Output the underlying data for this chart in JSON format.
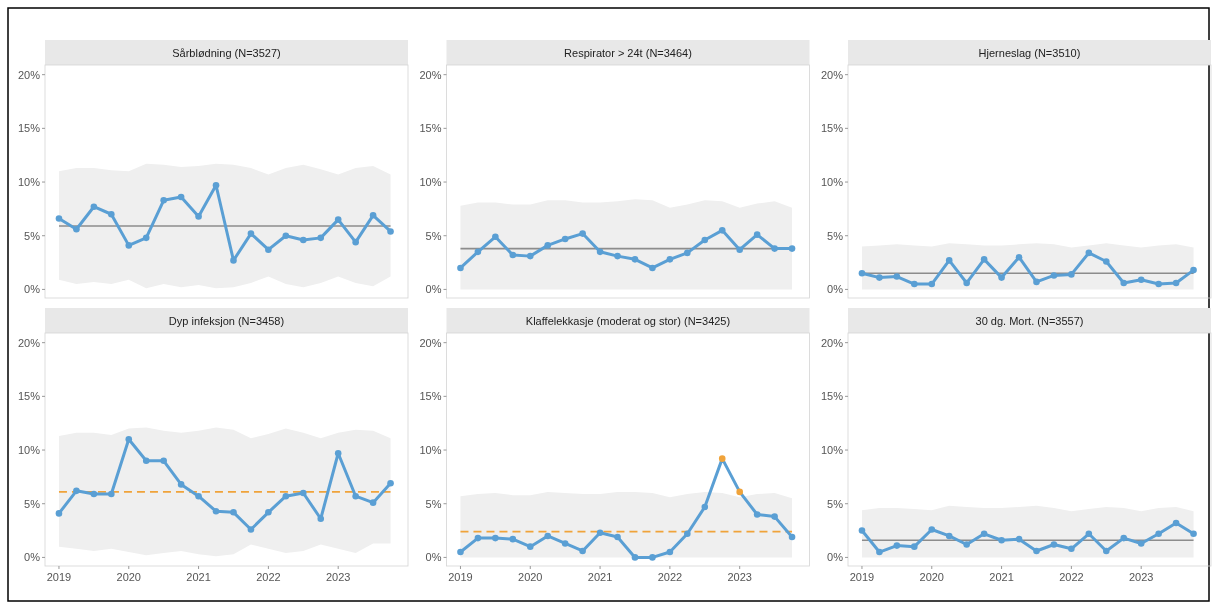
{
  "chart_data": [
    {
      "type": "line",
      "title": "Sårblødning (N=3527)",
      "x": [
        2019,
        2019.25,
        2019.5,
        2019.75,
        2020,
        2020.25,
        2020.5,
        2020.75,
        2021,
        2021.25,
        2021.5,
        2021.75,
        2022,
        2022.25,
        2022.5,
        2022.75,
        2023,
        2023.25,
        2023.5,
        2023.75
      ],
      "xlim": [
        2018.8,
        2024
      ],
      "ylim": [
        -0.8,
        20.9
      ],
      "yticks": [
        {
          "value": 0,
          "label": "0%"
        },
        {
          "value": 5,
          "label": "5%"
        },
        {
          "value": 10,
          "label": "10%"
        },
        {
          "value": 15,
          "label": "15%"
        },
        {
          "value": 20,
          "label": "20%"
        }
      ],
      "tick_labels": "y",
      "marker": "circle",
      "grid": false,
      "series": [
        {
          "color": "#5a9fd4",
          "values": [
            6.6,
            5.6,
            7.7,
            7.0,
            4.1,
            4.8,
            8.3,
            8.6,
            6.8,
            9.7,
            2.7,
            5.2,
            3.7,
            5.0,
            4.6,
            4.8,
            6.5,
            4.4,
            6.9,
            5.4
          ],
          "lower": [
            0.9,
            0.5,
            0.7,
            0.5,
            0.9,
            0.1,
            0.5,
            0.2,
            0.4,
            0.1,
            0.2,
            0.6,
            1.2,
            0.5,
            0.2,
            0.6,
            1.2,
            0.6,
            0.3,
            1.2
          ],
          "upper": [
            11.0,
            11.3,
            11.3,
            11.1,
            11.0,
            11.7,
            11.6,
            11.4,
            11.5,
            11.7,
            11.6,
            11.3,
            10.7,
            11.3,
            11.6,
            11.2,
            10.7,
            11.3,
            11.5,
            10.7
          ]
        }
      ],
      "ref_lines": [
        {
          "axis": "y",
          "value": 5.9,
          "color": "#8c8c8c",
          "line_style": "solid"
        }
      ]
    },
    {
      "type": "line",
      "title": "Respirator > 24t (N=3464)",
      "x": [
        2019,
        2019.25,
        2019.5,
        2019.75,
        2020,
        2020.25,
        2020.5,
        2020.75,
        2021,
        2021.25,
        2021.5,
        2021.75,
        2022,
        2022.25,
        2022.5,
        2022.75,
        2023,
        2023.25,
        2023.5,
        2023.75
      ],
      "xlim": [
        2018.8,
        2024
      ],
      "ylim": [
        -0.8,
        20.9
      ],
      "yticks": [
        {
          "value": 0,
          "label": "0%"
        },
        {
          "value": 5,
          "label": "5%"
        },
        {
          "value": 10,
          "label": "10%"
        },
        {
          "value": 15,
          "label": "15%"
        },
        {
          "value": 20,
          "label": "20%"
        }
      ],
      "tick_labels": "y",
      "marker": "circle",
      "grid": false,
      "series": [
        {
          "color": "#5a9fd4",
          "values": [
            2.0,
            3.5,
            4.9,
            3.2,
            3.1,
            4.1,
            4.7,
            5.2,
            3.5,
            3.1,
            2.8,
            2.0,
            2.8,
            3.4,
            4.6,
            5.5,
            3.7,
            5.1,
            3.8,
            3.8
          ],
          "lower": [
            0,
            0,
            0,
            0,
            0,
            0,
            0,
            0,
            0,
            0,
            0,
            0,
            0,
            0,
            0,
            0,
            0,
            0,
            0,
            0
          ],
          "upper": [
            7.8,
            8.1,
            8.1,
            7.9,
            7.9,
            8.3,
            8.3,
            8.1,
            8.1,
            8.2,
            8.4,
            8.3,
            7.6,
            7.9,
            8.3,
            8.2,
            7.6,
            8.0,
            8.2,
            7.6
          ]
        }
      ],
      "ref_lines": [
        {
          "axis": "y",
          "value": 3.8,
          "color": "#8c8c8c",
          "line_style": "solid"
        }
      ]
    },
    {
      "type": "line",
      "title": "Hjerneslag (N=3510)",
      "x": [
        2019,
        2019.25,
        2019.5,
        2019.75,
        2020,
        2020.25,
        2020.5,
        2020.75,
        2021,
        2021.25,
        2021.5,
        2021.75,
        2022,
        2022.25,
        2022.5,
        2022.75,
        2023,
        2023.25,
        2023.5,
        2023.75
      ],
      "xlim": [
        2018.8,
        2024
      ],
      "ylim": [
        -0.8,
        20.9
      ],
      "yticks": [
        {
          "value": 0,
          "label": "0%"
        },
        {
          "value": 5,
          "label": "5%"
        },
        {
          "value": 10,
          "label": "10%"
        },
        {
          "value": 15,
          "label": "15%"
        },
        {
          "value": 20,
          "label": "20%"
        }
      ],
      "tick_labels": "y",
      "marker": "circle",
      "grid": false,
      "series": [
        {
          "color": "#5a9fd4",
          "values": [
            1.5,
            1.1,
            1.2,
            0.5,
            0.5,
            2.7,
            0.6,
            2.8,
            1.1,
            3.0,
            0.7,
            1.3,
            1.4,
            3.4,
            2.6,
            0.6,
            0.9,
            0.5,
            0.6,
            1.8
          ],
          "lower": [
            0,
            0,
            0,
            0,
            0,
            0,
            0,
            0,
            0,
            0,
            0,
            0,
            0,
            0,
            0,
            0,
            0,
            0,
            0,
            0
          ],
          "upper": [
            4.0,
            4.1,
            4.2,
            4.1,
            4.0,
            4.3,
            4.2,
            4.1,
            4.1,
            4.2,
            4.3,
            4.2,
            3.9,
            4.1,
            4.3,
            4.1,
            3.9,
            4.1,
            4.2,
            3.9
          ]
        }
      ],
      "ref_lines": [
        {
          "axis": "y",
          "value": 1.5,
          "color": "#8c8c8c",
          "line_style": "solid"
        }
      ]
    },
    {
      "type": "line",
      "title": "Dyp infeksjon (N=3458)",
      "x": [
        2019,
        2019.25,
        2019.5,
        2019.75,
        2020,
        2020.25,
        2020.5,
        2020.75,
        2021,
        2021.25,
        2021.5,
        2021.75,
        2022,
        2022.25,
        2022.5,
        2022.75,
        2023,
        2023.25,
        2023.5,
        2023.75
      ],
      "xlim": [
        2018.8,
        2024
      ],
      "xticks": [
        2019,
        2020,
        2021,
        2022,
        2023
      ],
      "ylim": [
        -0.8,
        20.9
      ],
      "yticks": [
        {
          "value": 0,
          "label": "0%"
        },
        {
          "value": 5,
          "label": "5%"
        },
        {
          "value": 10,
          "label": "10%"
        },
        {
          "value": 15,
          "label": "15%"
        },
        {
          "value": 20,
          "label": "20%"
        }
      ],
      "marker": "circle",
      "grid": false,
      "series": [
        {
          "color": "#5a9fd4",
          "values": [
            4.1,
            6.2,
            5.9,
            5.9,
            11.0,
            9.0,
            9.0,
            6.8,
            5.7,
            4.3,
            4.2,
            2.6,
            4.2,
            5.7,
            6.0,
            3.6,
            9.7,
            5.7,
            5.1,
            6.9
          ],
          "lower": [
            1.0,
            0.8,
            0.6,
            0.8,
            0.5,
            0.2,
            0.4,
            0.6,
            0.3,
            0.1,
            0.3,
            1.2,
            0.8,
            0.4,
            0.6,
            1.2,
            0.8,
            0.4,
            1.3,
            1.3
          ],
          "upper": [
            11.3,
            11.6,
            11.6,
            11.4,
            12.0,
            12.1,
            11.8,
            11.6,
            11.8,
            12.1,
            11.9,
            11.1,
            11.5,
            12.0,
            11.6,
            11.1,
            11.6,
            11.9,
            11.8,
            11.1
          ]
        }
      ],
      "ref_lines": [
        {
          "axis": "y",
          "value": 6.1,
          "color": "#f0a33a",
          "line_style": "dashed"
        }
      ]
    },
    {
      "type": "line",
      "title": "Klaffelekkasje (moderat og stor) (N=3425)",
      "x": [
        2019,
        2019.25,
        2019.5,
        2019.75,
        2020,
        2020.25,
        2020.5,
        2020.75,
        2021,
        2021.25,
        2021.5,
        2021.75,
        2022,
        2022.25,
        2022.5,
        2022.75,
        2023,
        2023.25,
        2023.5,
        2023.75
      ],
      "xlim": [
        2018.8,
        2024
      ],
      "xticks": [
        2019,
        2020,
        2021,
        2022,
        2023
      ],
      "ylim": [
        -0.8,
        20.9
      ],
      "yticks": [
        {
          "value": 0,
          "label": "0%"
        },
        {
          "value": 5,
          "label": "5%"
        },
        {
          "value": 10,
          "label": "10%"
        },
        {
          "value": 15,
          "label": "15%"
        },
        {
          "value": 20,
          "label": "20%"
        }
      ],
      "marker": "circle",
      "grid": false,
      "series": [
        {
          "color": "#5a9fd4",
          "colors": [
            "#5a9fd4",
            "#5a9fd4",
            "#5a9fd4",
            "#5a9fd4",
            "#5a9fd4",
            "#5a9fd4",
            "#5a9fd4",
            "#5a9fd4",
            "#5a9fd4",
            "#5a9fd4",
            "#5a9fd4",
            "#5a9fd4",
            "#5a9fd4",
            "#5a9fd4",
            "#5a9fd4",
            "#f0a33a",
            "#f0a33a",
            "#5a9fd4",
            "#5a9fd4",
            "#5a9fd4"
          ],
          "values": [
            0.5,
            1.8,
            1.8,
            1.7,
            1.0,
            2.0,
            1.3,
            0.6,
            2.3,
            1.9,
            0,
            0,
            0.5,
            2.2,
            4.7,
            9.2,
            6.1,
            4.0,
            3.8,
            1.9
          ],
          "lower": [
            0,
            0,
            0,
            0,
            0,
            0,
            0,
            0,
            0,
            0,
            0,
            0,
            0,
            0,
            0,
            0,
            0,
            0,
            0,
            0
          ],
          "upper": [
            5.7,
            5.9,
            6.0,
            5.8,
            5.8,
            6.1,
            6.0,
            5.9,
            5.9,
            6.1,
            6.1,
            6.0,
            5.6,
            5.9,
            6.1,
            6.0,
            5.6,
            5.9,
            6.0,
            5.5
          ]
        }
      ],
      "ref_lines": [
        {
          "axis": "y",
          "value": 2.4,
          "color": "#f0a33a",
          "line_style": "dashed"
        }
      ]
    },
    {
      "type": "line",
      "title": "30 dg. Mort. (N=3557)",
      "x": [
        2019,
        2019.25,
        2019.5,
        2019.75,
        2020,
        2020.25,
        2020.5,
        2020.75,
        2021,
        2021.25,
        2021.5,
        2021.75,
        2022,
        2022.25,
        2022.5,
        2022.75,
        2023,
        2023.25,
        2023.5,
        2023.75
      ],
      "xlim": [
        2018.8,
        2024
      ],
      "xticks": [
        2019,
        2020,
        2021,
        2022,
        2023
      ],
      "ylim": [
        -0.8,
        20.9
      ],
      "yticks": [
        {
          "value": 0,
          "label": "0%"
        },
        {
          "value": 5,
          "label": "5%"
        },
        {
          "value": 10,
          "label": "10%"
        },
        {
          "value": 15,
          "label": "15%"
        },
        {
          "value": 20,
          "label": "20%"
        }
      ],
      "marker": "circle",
      "grid": false,
      "series": [
        {
          "color": "#5a9fd4",
          "values": [
            2.5,
            0.5,
            1.1,
            1.0,
            2.6,
            2.0,
            1.2,
            2.2,
            1.6,
            1.7,
            0.6,
            1.2,
            0.8,
            2.2,
            0.6,
            1.8,
            1.3,
            2.2,
            3.2,
            2.2
          ],
          "lower": [
            0,
            0,
            0,
            0,
            0,
            0,
            0,
            0,
            0,
            0,
            0,
            0,
            0,
            0,
            0,
            0,
            0,
            0,
            0,
            0
          ],
          "upper": [
            4.4,
            4.6,
            4.6,
            4.5,
            4.4,
            4.8,
            4.7,
            4.6,
            4.6,
            4.7,
            4.8,
            4.6,
            4.3,
            4.5,
            4.7,
            4.6,
            4.3,
            4.6,
            4.7,
            4.3
          ]
        }
      ],
      "ref_lines": [
        {
          "axis": "y",
          "value": 1.6,
          "color": "#8c8c8c",
          "line_style": "solid"
        }
      ]
    }
  ]
}
